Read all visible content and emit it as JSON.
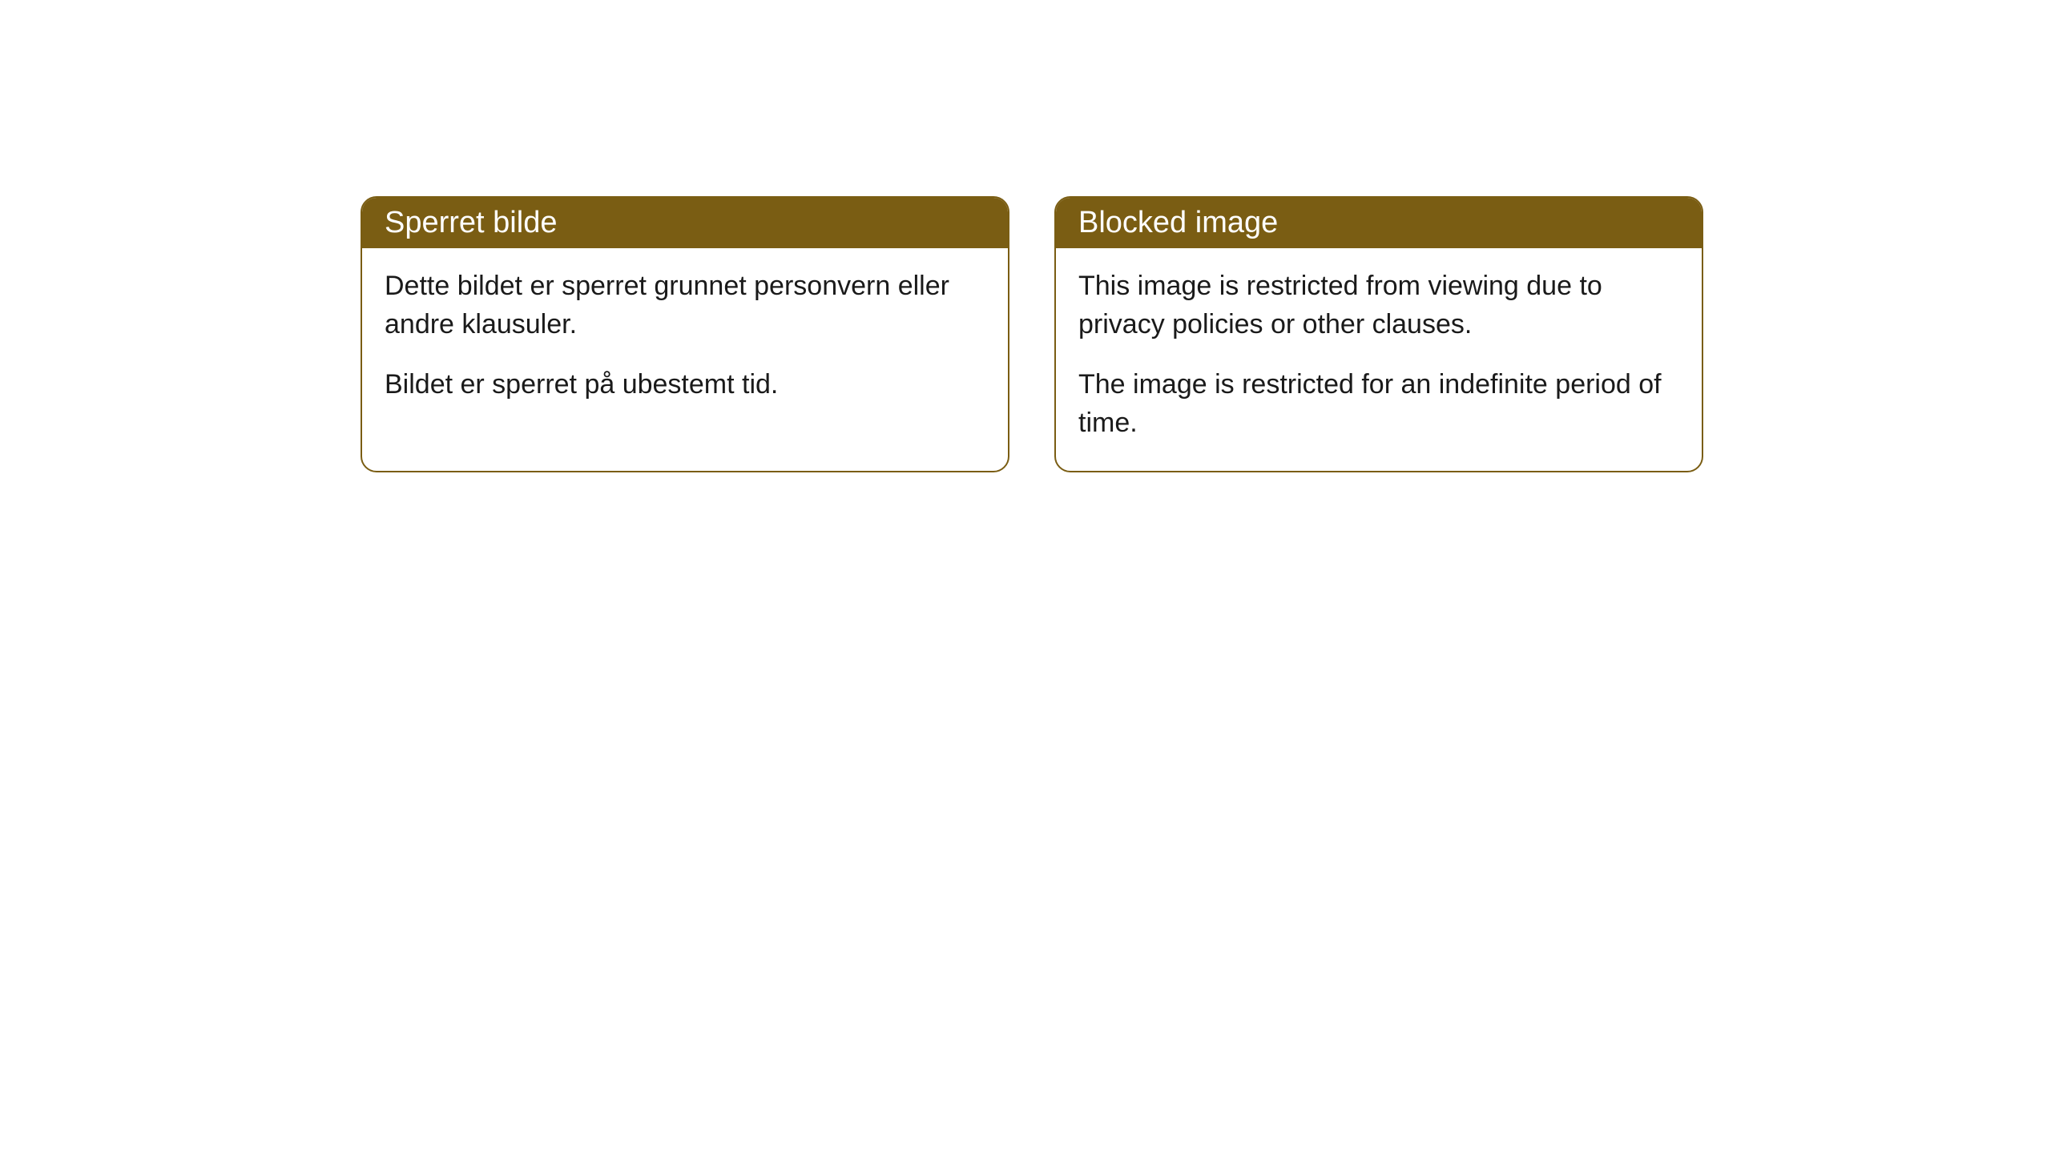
{
  "cards": [
    {
      "title": "Sperret bilde",
      "paragraph1": "Dette bildet er sperret grunnet personvern eller andre klausuler.",
      "paragraph2": "Bildet er sperret på ubestemt tid."
    },
    {
      "title": "Blocked image",
      "paragraph1": "This image is restricted from viewing due to privacy policies or other clauses.",
      "paragraph2": "The image is restricted for an indefinite period of time."
    }
  ],
  "style": {
    "header_background": "#7a5d13",
    "header_text_color": "#ffffff",
    "border_color": "#7a5d13",
    "body_text_color": "#1a1a1a",
    "card_background": "#ffffff",
    "page_background": "#ffffff",
    "border_radius": 20,
    "title_fontsize": 38,
    "body_fontsize": 34
  }
}
